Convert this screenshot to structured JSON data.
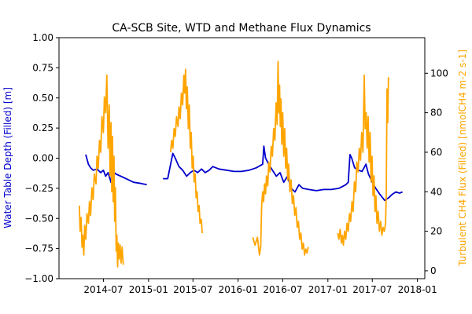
{
  "chart_data": {
    "type": "line",
    "title": "CA-SCB Site, WTD and Methane Flux Dynamics",
    "xlabel": "",
    "ylabel_left": "Water Table Depth (Filled) [m]",
    "ylabel_right": "Turbulent CH4 Flux (Filled) [nmolCH4 m-2 s-1]",
    "xlim": [
      "2014-01-01",
      "2018-01-31"
    ],
    "ylim_left": [
      -1.0,
      1.0
    ],
    "ylim_right": [
      -4,
      118
    ],
    "x_ticks": [
      "2014-07",
      "2015-01",
      "2015-07",
      "2016-01",
      "2016-07",
      "2017-01",
      "2017-07",
      "2018-01"
    ],
    "y_ticks_left": [
      "1.00",
      "0.75",
      "0.50",
      "0.25",
      "0.00",
      "−0.25",
      "−0.50",
      "−0.75",
      "−1.00"
    ],
    "y_ticks_right": [
      "100",
      "80",
      "60",
      "40",
      "20",
      "0"
    ],
    "grid": false,
    "series": [
      {
        "name": "Water Table Depth (Filled) [m]",
        "axis": "left",
        "color": "#0000cd",
        "segments": [
          [
            [
              "2014-04-20",
              0.03
            ],
            [
              "2014-05-01",
              -0.05
            ],
            [
              "2014-05-10",
              -0.08
            ],
            [
              "2014-05-20",
              -0.1
            ],
            [
              "2014-06-05",
              -0.09
            ],
            [
              "2014-06-20",
              -0.12
            ],
            [
              "2014-07-01",
              -0.1
            ],
            [
              "2014-07-10",
              -0.15
            ],
            [
              "2014-07-20",
              -0.12
            ],
            [
              "2014-08-01",
              -0.2
            ],
            [
              "2014-08-05",
              -0.1
            ],
            [
              "2014-08-20",
              -0.13
            ],
            [
              "2014-09-10",
              -0.15
            ],
            [
              "2014-10-01",
              -0.17
            ],
            [
              "2014-11-01",
              -0.2
            ],
            [
              "2014-12-01",
              -0.21
            ],
            [
              "2014-12-25",
              -0.22
            ]
          ],
          [
            [
              "2015-03-01",
              -0.17
            ],
            [
              "2015-03-20",
              -0.17
            ],
            [
              "2015-04-01",
              -0.05
            ],
            [
              "2015-04-10",
              0.04
            ],
            [
              "2015-04-20",
              0.0
            ],
            [
              "2015-05-05",
              -0.07
            ],
            [
              "2015-05-20",
              -0.1
            ],
            [
              "2015-06-05",
              -0.15
            ],
            [
              "2015-06-20",
              -0.12
            ],
            [
              "2015-07-05",
              -0.1
            ],
            [
              "2015-07-20",
              -0.12
            ],
            [
              "2015-08-05",
              -0.09
            ],
            [
              "2015-08-20",
              -0.12
            ],
            [
              "2015-09-05",
              -0.1
            ],
            [
              "2015-09-20",
              -0.07
            ],
            [
              "2015-10-15",
              -0.09
            ],
            [
              "2015-11-15",
              -0.1
            ],
            [
              "2015-12-15",
              -0.11
            ],
            [
              "2016-01-15",
              -0.11
            ],
            [
              "2016-02-15",
              -0.1
            ],
            [
              "2016-03-15",
              -0.08
            ],
            [
              "2016-04-10",
              -0.05
            ],
            [
              "2016-04-15",
              0.1
            ],
            [
              "2016-04-22",
              0.0
            ],
            [
              "2016-05-05",
              -0.05
            ],
            [
              "2016-05-20",
              -0.1
            ],
            [
              "2016-06-05",
              -0.15
            ],
            [
              "2016-06-20",
              -0.12
            ],
            [
              "2016-07-05",
              -0.2
            ],
            [
              "2016-07-20",
              -0.15
            ],
            [
              "2016-08-05",
              -0.25
            ],
            [
              "2016-08-20",
              -0.28
            ],
            [
              "2016-09-05",
              -0.22
            ],
            [
              "2016-09-20",
              -0.25
            ],
            [
              "2016-10-15",
              -0.26
            ],
            [
              "2016-11-15",
              -0.27
            ],
            [
              "2016-12-15",
              -0.26
            ],
            [
              "2017-01-15",
              -0.26
            ],
            [
              "2017-02-15",
              -0.25
            ],
            [
              "2017-03-15",
              -0.22
            ],
            [
              "2017-03-25",
              -0.2
            ],
            [
              "2017-04-01",
              0.03
            ],
            [
              "2017-04-08",
              0.0
            ],
            [
              "2017-04-20",
              -0.08
            ],
            [
              "2017-05-05",
              -0.1
            ],
            [
              "2017-05-20",
              -0.11
            ],
            [
              "2017-06-05",
              -0.05
            ],
            [
              "2017-06-15",
              -0.13
            ],
            [
              "2017-07-01",
              -0.2
            ],
            [
              "2017-07-15",
              -0.25
            ],
            [
              "2017-08-01",
              -0.3
            ],
            [
              "2017-08-20",
              -0.35
            ],
            [
              "2017-09-05",
              -0.33
            ],
            [
              "2017-09-20",
              -0.3
            ],
            [
              "2017-10-05",
              -0.28
            ],
            [
              "2017-10-20",
              -0.29
            ],
            [
              "2017-11-01",
              -0.28
            ]
          ]
        ]
      },
      {
        "name": "Turbulent CH4 Flux (Filled) [nmolCH4 m-2 s-1]",
        "axis": "right",
        "color": "#ffa500",
        "segments": [
          [
            [
              "2014-03-25",
              33
            ],
            [
              "2014-03-28",
              20
            ],
            [
              "2014-04-01",
              27
            ],
            [
              "2014-04-05",
              12
            ],
            [
              "2014-04-08",
              18
            ],
            [
              "2014-04-12",
              8
            ],
            [
              "2014-04-16",
              23
            ],
            [
              "2014-04-20",
              16
            ],
            [
              "2014-04-25",
              29
            ],
            [
              "2014-05-01",
              24
            ],
            [
              "2014-05-05",
              35
            ],
            [
              "2014-05-10",
              28
            ],
            [
              "2014-05-15",
              42
            ],
            [
              "2014-05-20",
              36
            ],
            [
              "2014-05-25",
              49
            ],
            [
              "2014-06-01",
              44
            ],
            [
              "2014-06-05",
              58
            ],
            [
              "2014-06-10",
              52
            ],
            [
              "2014-06-15",
              66
            ],
            [
              "2014-06-20",
              60
            ],
            [
              "2014-06-25",
              78
            ],
            [
              "2014-07-01",
              70
            ],
            [
              "2014-07-05",
              88
            ],
            [
              "2014-07-10",
              80
            ],
            [
              "2014-07-15",
              99
            ],
            [
              "2014-07-20",
              62
            ],
            [
              "2014-07-25",
              84
            ],
            [
              "2014-07-28",
              48
            ],
            [
              "2014-08-01",
              75
            ],
            [
              "2014-08-04",
              40
            ],
            [
              "2014-08-07",
              68
            ],
            [
              "2014-08-10",
              35
            ],
            [
              "2014-08-13",
              58
            ],
            [
              "2014-08-16",
              25
            ],
            [
              "2014-08-19",
              42
            ],
            [
              "2014-08-22",
              10
            ],
            [
              "2014-08-25",
              18
            ],
            [
              "2014-08-28",
              2
            ],
            [
              "2014-08-31",
              14
            ],
            [
              "2014-09-03",
              6
            ],
            [
              "2014-09-07",
              13
            ],
            [
              "2014-09-11",
              4
            ],
            [
              "2014-09-15",
              12
            ],
            [
              "2014-09-20",
              3
            ]
          ],
          [
            [
              "2015-04-01",
              60
            ],
            [
              "2015-04-05",
              66
            ],
            [
              "2015-04-10",
              62
            ],
            [
              "2015-04-15",
              72
            ],
            [
              "2015-04-20",
              68
            ],
            [
              "2015-04-25",
              78
            ],
            [
              "2015-05-01",
              73
            ],
            [
              "2015-05-05",
              83
            ],
            [
              "2015-05-10",
              77
            ],
            [
              "2015-05-15",
              90
            ],
            [
              "2015-05-20",
              84
            ],
            [
              "2015-05-25",
              99
            ],
            [
              "2015-05-28",
              90
            ],
            [
              "2015-06-01",
              102
            ],
            [
              "2015-06-04",
              82
            ],
            [
              "2015-06-08",
              93
            ],
            [
              "2015-06-12",
              72
            ],
            [
              "2015-06-16",
              84
            ],
            [
              "2015-06-20",
              62
            ],
            [
              "2015-06-24",
              70
            ],
            [
              "2015-06-28",
              52
            ],
            [
              "2015-07-02",
              58
            ],
            [
              "2015-07-06",
              45
            ],
            [
              "2015-07-10",
              49
            ],
            [
              "2015-07-14",
              37
            ],
            [
              "2015-07-18",
              40
            ],
            [
              "2015-07-22",
              30
            ],
            [
              "2015-07-26",
              33
            ],
            [
              "2015-07-30",
              24
            ],
            [
              "2015-08-04",
              26
            ],
            [
              "2015-08-08",
              19
            ]
          ],
          [
            [
              "2016-03-01",
              17
            ],
            [
              "2016-03-10",
              13
            ],
            [
              "2016-03-20",
              17
            ],
            [
              "2016-03-28",
              8
            ],
            [
              "2016-04-02",
              12
            ],
            [
              "2016-04-06",
              33
            ],
            [
              "2016-04-10",
              40
            ],
            [
              "2016-04-14",
              35
            ],
            [
              "2016-04-18",
              44
            ],
            [
              "2016-04-22",
              39
            ],
            [
              "2016-04-26",
              48
            ],
            [
              "2016-05-01",
              43
            ],
            [
              "2016-05-05",
              55
            ],
            [
              "2016-05-10",
              50
            ],
            [
              "2016-05-15",
              63
            ],
            [
              "2016-05-20",
              58
            ],
            [
              "2016-05-25",
              72
            ],
            [
              "2016-05-30",
              66
            ],
            [
              "2016-06-04",
              85
            ],
            [
              "2016-06-08",
              74
            ],
            [
              "2016-06-12",
              106
            ],
            [
              "2016-06-15",
              80
            ],
            [
              "2016-06-18",
              94
            ],
            [
              "2016-06-21",
              73
            ],
            [
              "2016-06-24",
              87
            ],
            [
              "2016-06-27",
              64
            ],
            [
              "2016-07-01",
              80
            ],
            [
              "2016-07-05",
              58
            ],
            [
              "2016-07-09",
              72
            ],
            [
              "2016-07-13",
              52
            ],
            [
              "2016-07-17",
              62
            ],
            [
              "2016-07-21",
              46
            ],
            [
              "2016-07-25",
              54
            ],
            [
              "2016-07-30",
              40
            ],
            [
              "2016-08-04",
              46
            ],
            [
              "2016-08-09",
              34
            ],
            [
              "2016-08-14",
              38
            ],
            [
              "2016-08-19",
              28
            ],
            [
              "2016-08-24",
              32
            ],
            [
              "2016-08-29",
              22
            ],
            [
              "2016-09-03",
              25
            ],
            [
              "2016-09-08",
              16
            ],
            [
              "2016-09-13",
              19
            ],
            [
              "2016-09-18",
              11
            ],
            [
              "2016-09-23",
              14
            ],
            [
              "2016-09-28",
              8
            ],
            [
              "2016-10-03",
              11
            ],
            [
              "2016-10-08",
              9
            ],
            [
              "2016-10-13",
              12
            ]
          ],
          [
            [
              "2017-02-10",
              19
            ],
            [
              "2017-02-15",
              16
            ],
            [
              "2017-02-20",
              21
            ],
            [
              "2017-02-25",
              14
            ],
            [
              "2017-03-01",
              18
            ],
            [
              "2017-03-05",
              13
            ],
            [
              "2017-03-10",
              20
            ],
            [
              "2017-03-15",
              16
            ],
            [
              "2017-03-20",
              24
            ],
            [
              "2017-03-25",
              20
            ],
            [
              "2017-03-30",
              29
            ],
            [
              "2017-04-04",
              25
            ],
            [
              "2017-04-09",
              35
            ],
            [
              "2017-04-14",
              30
            ],
            [
              "2017-04-19",
              45
            ],
            [
              "2017-04-24",
              40
            ],
            [
              "2017-04-29",
              55
            ],
            [
              "2017-05-04",
              50
            ],
            [
              "2017-05-09",
              62
            ],
            [
              "2017-05-14",
              56
            ],
            [
              "2017-05-19",
              70
            ],
            [
              "2017-05-24",
              60
            ],
            [
              "2017-05-29",
              99
            ],
            [
              "2017-06-02",
              72
            ],
            [
              "2017-06-06",
              80
            ],
            [
              "2017-06-10",
              62
            ],
            [
              "2017-06-14",
              78
            ],
            [
              "2017-06-18",
              55
            ],
            [
              "2017-06-22",
              70
            ],
            [
              "2017-06-26",
              45
            ],
            [
              "2017-06-30",
              58
            ],
            [
              "2017-07-04",
              38
            ],
            [
              "2017-07-08",
              48
            ],
            [
              "2017-07-12",
              30
            ],
            [
              "2017-07-16",
              38
            ],
            [
              "2017-07-20",
              24
            ],
            [
              "2017-07-25",
              30
            ],
            [
              "2017-07-30",
              20
            ],
            [
              "2017-08-04",
              25
            ],
            [
              "2017-08-09",
              18
            ],
            [
              "2017-08-14",
              22
            ],
            [
              "2017-08-19",
              20
            ],
            [
              "2017-08-24",
              24
            ],
            [
              "2017-08-27",
              38
            ],
            [
              "2017-08-30",
              92
            ],
            [
              "2017-09-02",
              75
            ],
            [
              "2017-09-05",
              98
            ]
          ]
        ]
      }
    ]
  }
}
